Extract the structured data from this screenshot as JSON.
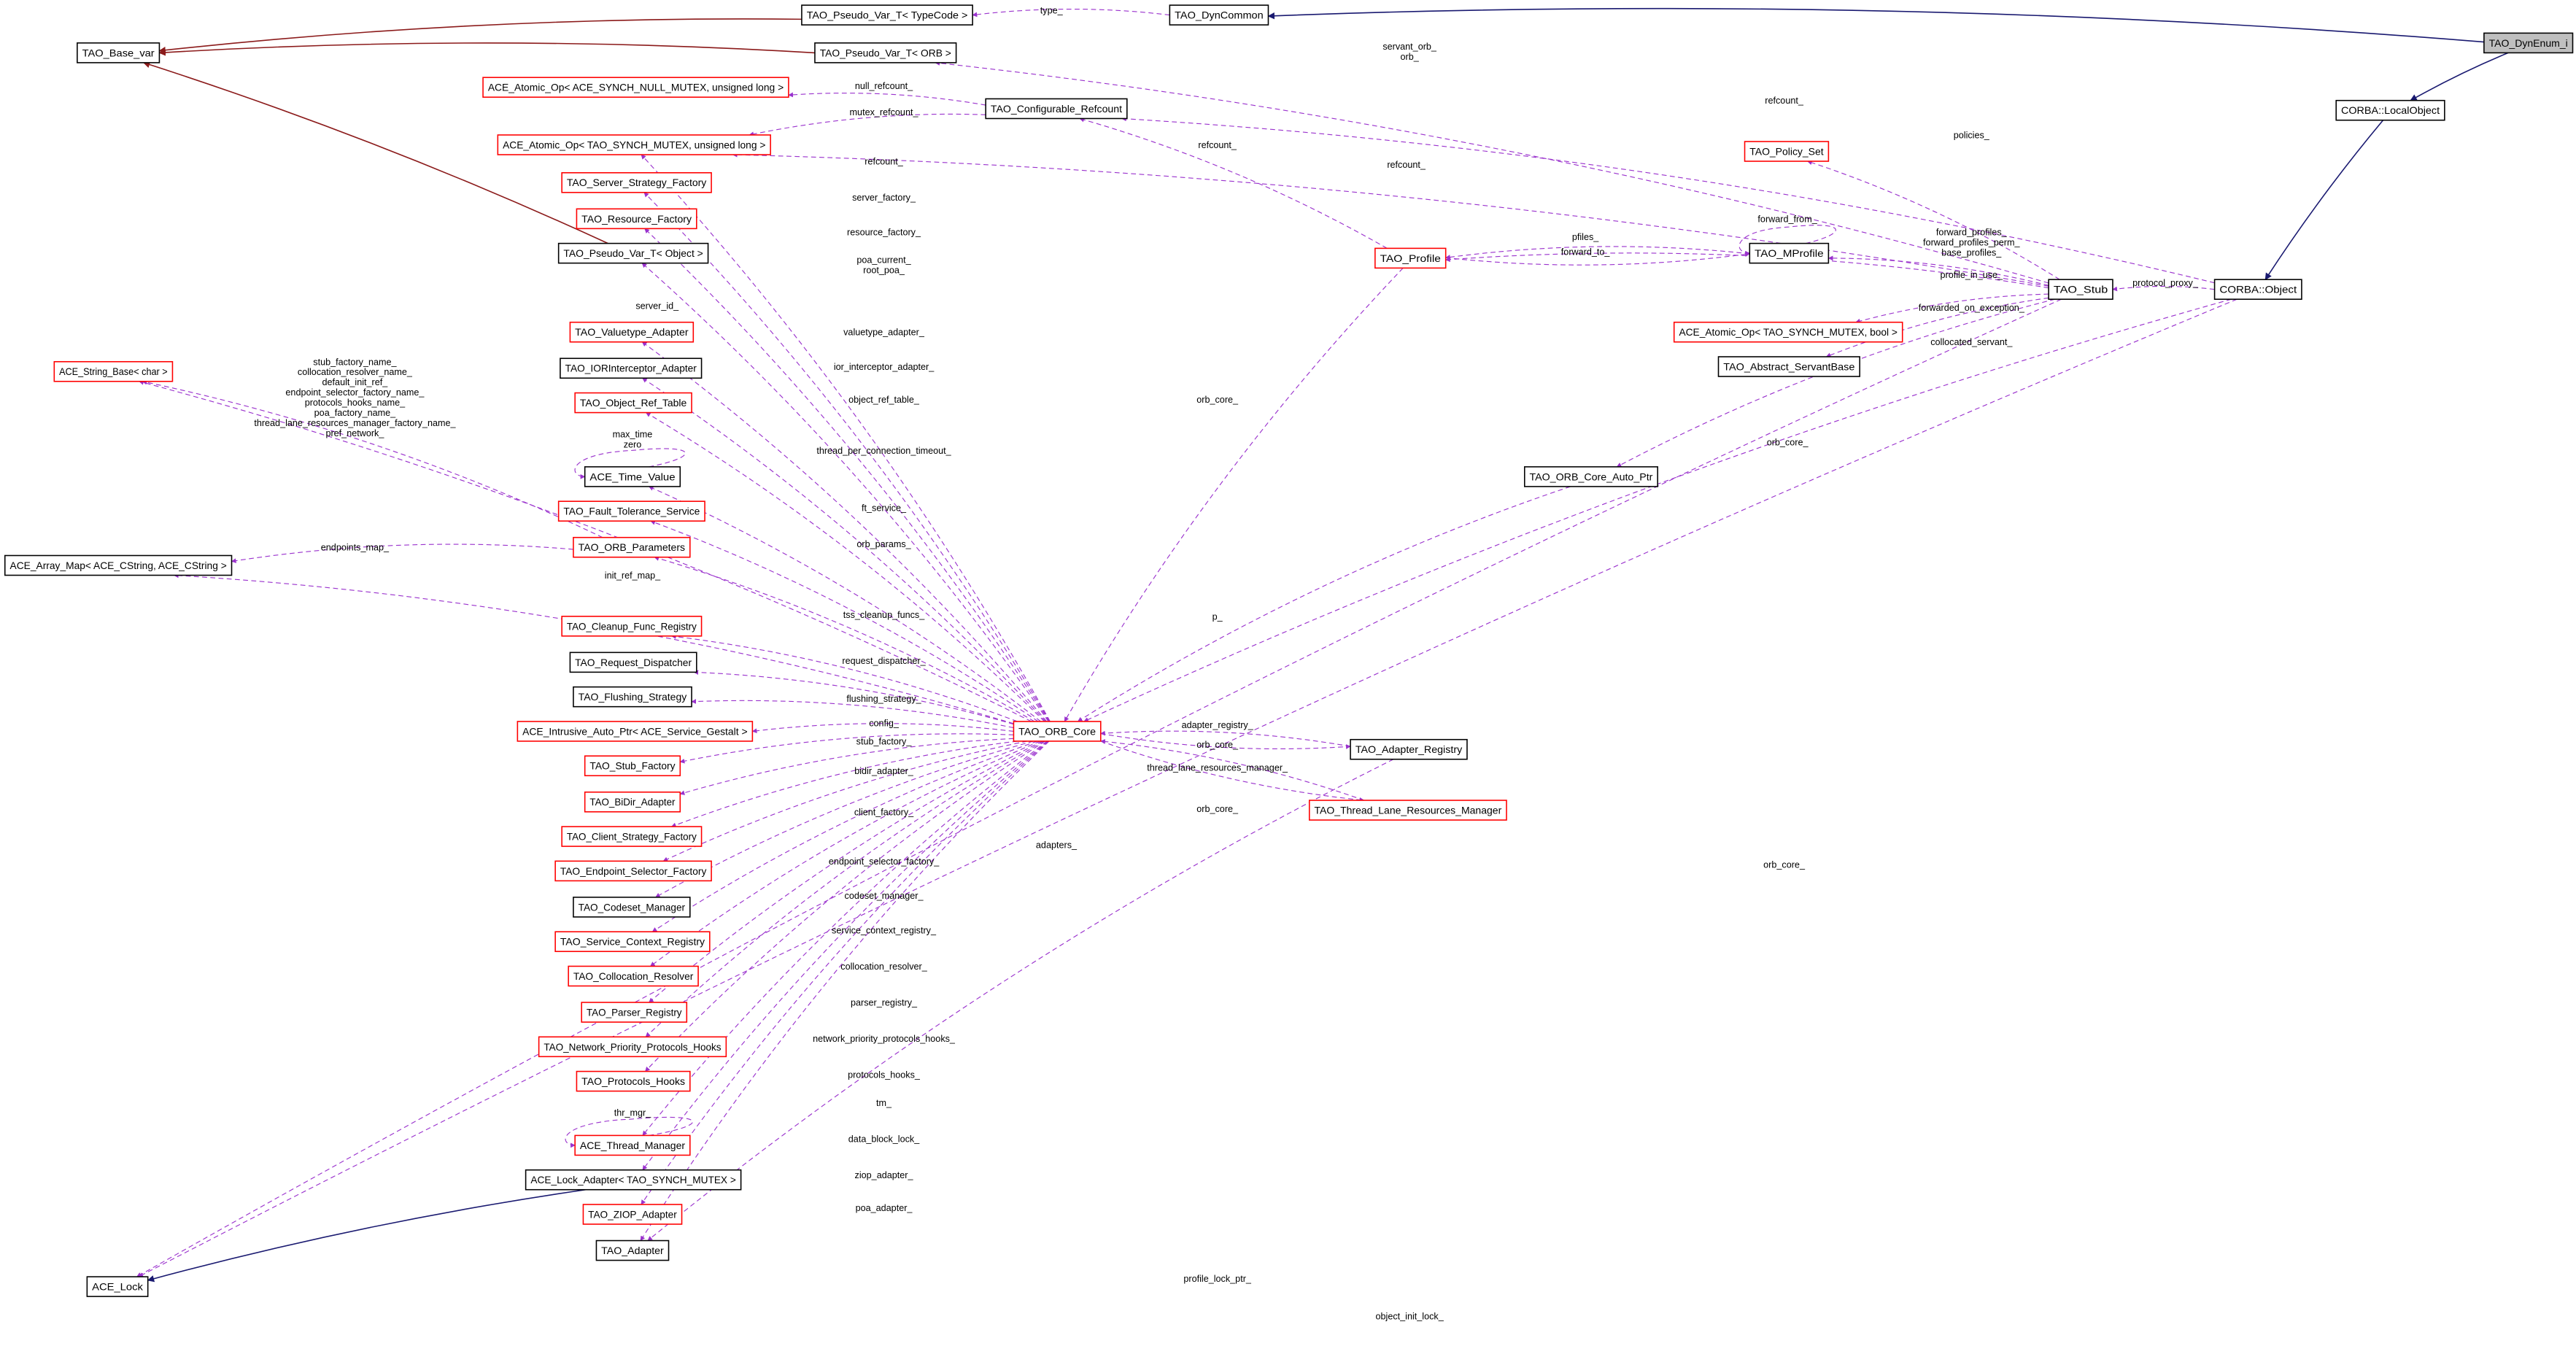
{
  "colors": {
    "usage_edge": "#9a32cd",
    "inherit_edge": "#191970",
    "template_edge": "#8b1a1a",
    "focus_fill": "#bfbfbf",
    "undocumented_border": "#ff0000",
    "documented_border": "#000000"
  },
  "nodes": [
    {
      "id": "dynenum",
      "label": "TAO_DynEnum_i",
      "style": "focus"
    },
    {
      "id": "pvt_typecode",
      "label": "TAO_Pseudo_Var_T< TypeCode >",
      "style": "black"
    },
    {
      "id": "dyncommon",
      "label": "TAO_DynCommon",
      "style": "black"
    },
    {
      "id": "base_var",
      "label": "TAO_Base_var",
      "style": "black"
    },
    {
      "id": "pvt_orb",
      "label": "TAO_Pseudo_Var_T< ORB >",
      "style": "black"
    },
    {
      "id": "atomic_null",
      "label": "ACE_Atomic_Op< ACE_SYNCH_NULL_MUTEX, unsigned long >",
      "style": "red"
    },
    {
      "id": "conf_refcount",
      "label": "TAO_Configurable_Refcount",
      "style": "black"
    },
    {
      "id": "localobject",
      "label": "CORBA::LocalObject",
      "style": "black"
    },
    {
      "id": "atomic_ul",
      "label": "ACE_Atomic_Op< TAO_SYNCH_MUTEX, unsigned long >",
      "style": "red"
    },
    {
      "id": "policy_set",
      "label": "TAO_Policy_Set",
      "style": "red"
    },
    {
      "id": "server_strategy",
      "label": "TAO_Server_Strategy_Factory",
      "style": "red"
    },
    {
      "id": "resource_factory",
      "label": "TAO_Resource_Factory",
      "style": "red"
    },
    {
      "id": "pvt_object",
      "label": "TAO_Pseudo_Var_T< Object >",
      "style": "black"
    },
    {
      "id": "profile",
      "label": "TAO_Profile",
      "style": "red"
    },
    {
      "id": "mprofile",
      "label": "TAO_MProfile",
      "style": "black"
    },
    {
      "id": "stub",
      "label": "TAO_Stub",
      "style": "black"
    },
    {
      "id": "corba_object",
      "label": "CORBA::Object",
      "style": "black"
    },
    {
      "id": "string_base",
      "label": "ACE_String_Base< char >",
      "style": "red"
    },
    {
      "id": "valuetype",
      "label": "TAO_Valuetype_Adapter",
      "style": "red"
    },
    {
      "id": "iorinterceptor",
      "label": "TAO_IORInterceptor_Adapter",
      "style": "black"
    },
    {
      "id": "object_ref_table",
      "label": "TAO_Object_Ref_Table",
      "style": "red"
    },
    {
      "id": "atomic_bool",
      "label": "ACE_Atomic_Op< TAO_SYNCH_MUTEX, bool >",
      "style": "red"
    },
    {
      "id": "servantbase",
      "label": "TAO_Abstract_ServantBase",
      "style": "black"
    },
    {
      "id": "time_value",
      "label": "ACE_Time_Value",
      "style": "black"
    },
    {
      "id": "core_auto_ptr",
      "label": "TAO_ORB_Core_Auto_Ptr",
      "style": "black"
    },
    {
      "id": "fault_tolerance",
      "label": "TAO_Fault_Tolerance_Service",
      "style": "red"
    },
    {
      "id": "orb_params",
      "label": "TAO_ORB_Parameters",
      "style": "red"
    },
    {
      "id": "array_map",
      "label": "ACE_Array_Map< ACE_CString, ACE_CString >",
      "style": "black"
    },
    {
      "id": "cleanup",
      "label": "TAO_Cleanup_Func_Registry",
      "style": "red"
    },
    {
      "id": "request_dispatcher",
      "label": "TAO_Request_Dispatcher",
      "style": "black"
    },
    {
      "id": "flushing",
      "label": "TAO_Flushing_Strategy",
      "style": "black"
    },
    {
      "id": "intrusive",
      "label": "ACE_Intrusive_Auto_Ptr< ACE_Service_Gestalt >",
      "style": "red"
    },
    {
      "id": "orb_core",
      "label": "TAO_ORB_Core",
      "style": "red"
    },
    {
      "id": "adapter_registry",
      "label": "TAO_Adapter_Registry",
      "style": "black"
    },
    {
      "id": "stub_factory",
      "label": "TAO_Stub_Factory",
      "style": "red"
    },
    {
      "id": "thread_lane",
      "label": "TAO_Thread_Lane_Resources_Manager",
      "style": "red"
    },
    {
      "id": "bidir",
      "label": "TAO_BiDir_Adapter",
      "style": "red"
    },
    {
      "id": "client_strategy",
      "label": "TAO_Client_Strategy_Factory",
      "style": "red"
    },
    {
      "id": "endpoint_selector",
      "label": "TAO_Endpoint_Selector_Factory",
      "style": "red"
    },
    {
      "id": "codeset",
      "label": "TAO_Codeset_Manager",
      "style": "black"
    },
    {
      "id": "service_context",
      "label": "TAO_Service_Context_Registry",
      "style": "red"
    },
    {
      "id": "collocation",
      "label": "TAO_Collocation_Resolver",
      "style": "red"
    },
    {
      "id": "parser",
      "label": "TAO_Parser_Registry",
      "style": "red"
    },
    {
      "id": "network_priority",
      "label": "TAO_Network_Priority_Protocols_Hooks",
      "style": "red"
    },
    {
      "id": "protocols_hooks",
      "label": "TAO_Protocols_Hooks",
      "style": "red"
    },
    {
      "id": "thread_manager",
      "label": "ACE_Thread_Manager",
      "style": "red"
    },
    {
      "id": "lock_adapter",
      "label": "ACE_Lock_Adapter< TAO_SYNCH_MUTEX >",
      "style": "black"
    },
    {
      "id": "ziop",
      "label": "TAO_ZIOP_Adapter",
      "style": "red"
    },
    {
      "id": "adapter",
      "label": "TAO_Adapter",
      "style": "black"
    },
    {
      "id": "ace_lock",
      "label": "ACE_Lock",
      "style": "black"
    }
  ],
  "edges": [
    {
      "from": "dynenum",
      "to": "dyncommon",
      "kind": "inherit",
      "label": []
    },
    {
      "from": "dynenum",
      "to": "localobject",
      "kind": "inherit",
      "label": []
    },
    {
      "from": "localobject",
      "to": "corba_object",
      "kind": "inherit",
      "label": []
    },
    {
      "from": "pvt_typecode",
      "to": "base_var",
      "kind": "template",
      "label": []
    },
    {
      "from": "pvt_orb",
      "to": "base_var",
      "kind": "template",
      "label": []
    },
    {
      "from": "pvt_object",
      "to": "base_var",
      "kind": "template",
      "label": []
    },
    {
      "from": "lock_adapter",
      "to": "ace_lock",
      "kind": "inherit",
      "label": []
    },
    {
      "from": "dyncommon",
      "to": "pvt_typecode",
      "kind": "usage",
      "label": [
        "type_"
      ]
    },
    {
      "from": "stub",
      "to": "pvt_orb",
      "kind": "usage",
      "label": [
        "servant_orb_",
        "orb_"
      ]
    },
    {
      "from": "conf_refcount",
      "to": "atomic_null",
      "kind": "usage",
      "label": [
        "null_refcount_"
      ]
    },
    {
      "from": "conf_refcount",
      "to": "atomic_ul",
      "kind": "usage",
      "label": [
        "mutex_refcount_"
      ]
    },
    {
      "from": "corba_object",
      "to": "conf_refcount",
      "kind": "usage",
      "label": [
        "refcount_"
      ]
    },
    {
      "from": "profile",
      "to": "conf_refcount",
      "kind": "usage",
      "label": [
        "refcount_"
      ]
    },
    {
      "from": "stub",
      "to": "atomic_ul",
      "kind": "usage",
      "label": [
        "refcount_"
      ]
    },
    {
      "from": "orb_core",
      "to": "atomic_ul",
      "kind": "usage",
      "label": [
        "refcount_"
      ]
    },
    {
      "from": "stub",
      "to": "policy_set",
      "kind": "usage",
      "label": [
        "policies_"
      ]
    },
    {
      "from": "mprofile",
      "to": "mprofile",
      "kind": "usage",
      "label": [
        "forward_from_"
      ]
    },
    {
      "from": "mprofile",
      "to": "profile",
      "kind": "usage",
      "label": [
        "pfiles_"
      ]
    },
    {
      "from": "profile",
      "to": "mprofile",
      "kind": "usage",
      "label": [
        "forward_to_"
      ]
    },
    {
      "from": "stub",
      "to": "mprofile",
      "kind": "usage",
      "label": [
        "forward_profiles_",
        "forward_profiles_perm_",
        "base_profiles_"
      ]
    },
    {
      "from": "stub",
      "to": "profile",
      "kind": "usage",
      "label": [
        "profile_in_use_"
      ]
    },
    {
      "from": "corba_object",
      "to": "stub",
      "kind": "usage",
      "label": [
        "protocol_proxy_"
      ]
    },
    {
      "from": "stub",
      "to": "atomic_bool",
      "kind": "usage",
      "label": [
        "forwarded_on_exception_"
      ]
    },
    {
      "from": "stub",
      "to": "servantbase",
      "kind": "usage",
      "label": [
        "collocated_servant_"
      ]
    },
    {
      "from": "stub",
      "to": "core_auto_ptr",
      "kind": "usage",
      "label": [
        "orb_core_"
      ]
    },
    {
      "from": "profile",
      "to": "orb_core",
      "kind": "usage",
      "label": [
        "orb_core_"
      ]
    },
    {
      "from": "core_auto_ptr",
      "to": "orb_core",
      "kind": "usage",
      "label": [
        "p_"
      ]
    },
    {
      "from": "orb_core",
      "to": "server_strategy",
      "kind": "usage",
      "label": [
        "server_factory_"
      ]
    },
    {
      "from": "orb_core",
      "to": "resource_factory",
      "kind": "usage",
      "label": [
        "resource_factory_"
      ]
    },
    {
      "from": "orb_core",
      "to": "pvt_object",
      "kind": "usage",
      "label": [
        "poa_current_",
        "root_poa_"
      ]
    },
    {
      "from": "orb_core",
      "to": "string_base",
      "kind": "usage",
      "label": [
        "server_id_"
      ]
    },
    {
      "from": "orb_params",
      "to": "string_base",
      "kind": "usage",
      "label": [
        "stub_factory_name_",
        "collocation_resolver_name_",
        "default_init_ref_",
        "endpoint_selector_factory_name_",
        "protocols_hooks_name_",
        "poa_factory_name_",
        "thread_lane_resources_manager_factory_name_",
        "pref_network_"
      ]
    },
    {
      "from": "orb_core",
      "to": "valuetype",
      "kind": "usage",
      "label": [
        "valuetype_adapter_"
      ]
    },
    {
      "from": "orb_core",
      "to": "iorinterceptor",
      "kind": "usage",
      "label": [
        "ior_interceptor_adapter_"
      ]
    },
    {
      "from": "orb_core",
      "to": "object_ref_table",
      "kind": "usage",
      "label": [
        "object_ref_table_"
      ]
    },
    {
      "from": "time_value",
      "to": "time_value",
      "kind": "usage",
      "label": [
        "max_time",
        "zero"
      ]
    },
    {
      "from": "orb_core",
      "to": "time_value",
      "kind": "usage",
      "label": [
        "thread_per_connection_timeout_"
      ]
    },
    {
      "from": "orb_core",
      "to": "fault_tolerance",
      "kind": "usage",
      "label": [
        "ft_service_"
      ]
    },
    {
      "from": "orb_core",
      "to": "orb_params",
      "kind": "usage",
      "label": [
        "orb_params_"
      ]
    },
    {
      "from": "orb_params",
      "to": "array_map",
      "kind": "usage",
      "label": [
        "endpoints_map_"
      ]
    },
    {
      "from": "orb_core",
      "to": "array_map",
      "kind": "usage",
      "label": [
        "init_ref_map_"
      ]
    },
    {
      "from": "orb_core",
      "to": "cleanup",
      "kind": "usage",
      "label": [
        "tss_cleanup_funcs_"
      ]
    },
    {
      "from": "orb_core",
      "to": "request_dispatcher",
      "kind": "usage",
      "label": [
        "request_dispatcher_"
      ]
    },
    {
      "from": "orb_core",
      "to": "flushing",
      "kind": "usage",
      "label": [
        "flushing_strategy_"
      ]
    },
    {
      "from": "orb_core",
      "to": "intrusive",
      "kind": "usage",
      "label": [
        "config_"
      ]
    },
    {
      "from": "orb_core",
      "to": "stub_factory",
      "kind": "usage",
      "label": [
        "stub_factory_"
      ]
    },
    {
      "from": "orb_core",
      "to": "bidir",
      "kind": "usage",
      "label": [
        "bidir_adapter_"
      ]
    },
    {
      "from": "orb_core",
      "to": "client_strategy",
      "kind": "usage",
      "label": [
        "client_factory_"
      ]
    },
    {
      "from": "orb_core",
      "to": "endpoint_selector",
      "kind": "usage",
      "label": [
        "endpoint_selector_factory_"
      ]
    },
    {
      "from": "orb_core",
      "to": "codeset",
      "kind": "usage",
      "label": [
        "codeset_manager_"
      ]
    },
    {
      "from": "orb_core",
      "to": "service_context",
      "kind": "usage",
      "label": [
        "service_context_registry_"
      ]
    },
    {
      "from": "orb_core",
      "to": "collocation",
      "kind": "usage",
      "label": [
        "collocation_resolver_"
      ]
    },
    {
      "from": "orb_core",
      "to": "parser",
      "kind": "usage",
      "label": [
        "parser_registry_"
      ]
    },
    {
      "from": "orb_core",
      "to": "network_priority",
      "kind": "usage",
      "label": [
        "network_priority_protocols_hooks_"
      ]
    },
    {
      "from": "orb_core",
      "to": "protocols_hooks",
      "kind": "usage",
      "label": [
        "protocols_hooks_"
      ]
    },
    {
      "from": "thread_manager",
      "to": "thread_manager",
      "kind": "usage",
      "label": [
        "thr_mgr_"
      ]
    },
    {
      "from": "orb_core",
      "to": "thread_manager",
      "kind": "usage",
      "label": [
        "tm_"
      ]
    },
    {
      "from": "orb_core",
      "to": "lock_adapter",
      "kind": "usage",
      "label": [
        "data_block_lock_"
      ]
    },
    {
      "from": "orb_core",
      "to": "ziop",
      "kind": "usage",
      "label": [
        "ziop_adapter_"
      ]
    },
    {
      "from": "orb_core",
      "to": "adapter",
      "kind": "usage",
      "label": [
        "poa_adapter_"
      ]
    },
    {
      "from": "adapter_registry",
      "to": "adapter",
      "kind": "usage",
      "label": [
        "adapters_"
      ]
    },
    {
      "from": "orb_core",
      "to": "adapter_registry",
      "kind": "usage",
      "label": [
        "adapter_registry_"
      ]
    },
    {
      "from": "adapter_registry",
      "to": "orb_core",
      "kind": "usage",
      "label": [
        "orb_core_"
      ]
    },
    {
      "from": "orb_core",
      "to": "thread_lane",
      "kind": "usage",
      "label": [
        "thread_lane_resources_manager_"
      ]
    },
    {
      "from": "thread_lane",
      "to": "orb_core",
      "kind": "usage",
      "label": [
        "orb_core_"
      ]
    },
    {
      "from": "corba_object",
      "to": "orb_core",
      "kind": "usage",
      "label": [
        "orb_core_"
      ]
    },
    {
      "from": "stub",
      "to": "ace_lock",
      "kind": "usage",
      "label": [
        "profile_lock_ptr_"
      ]
    },
    {
      "from": "corba_object",
      "to": "ace_lock",
      "kind": "usage",
      "label": [
        "object_init_lock_"
      ]
    }
  ]
}
